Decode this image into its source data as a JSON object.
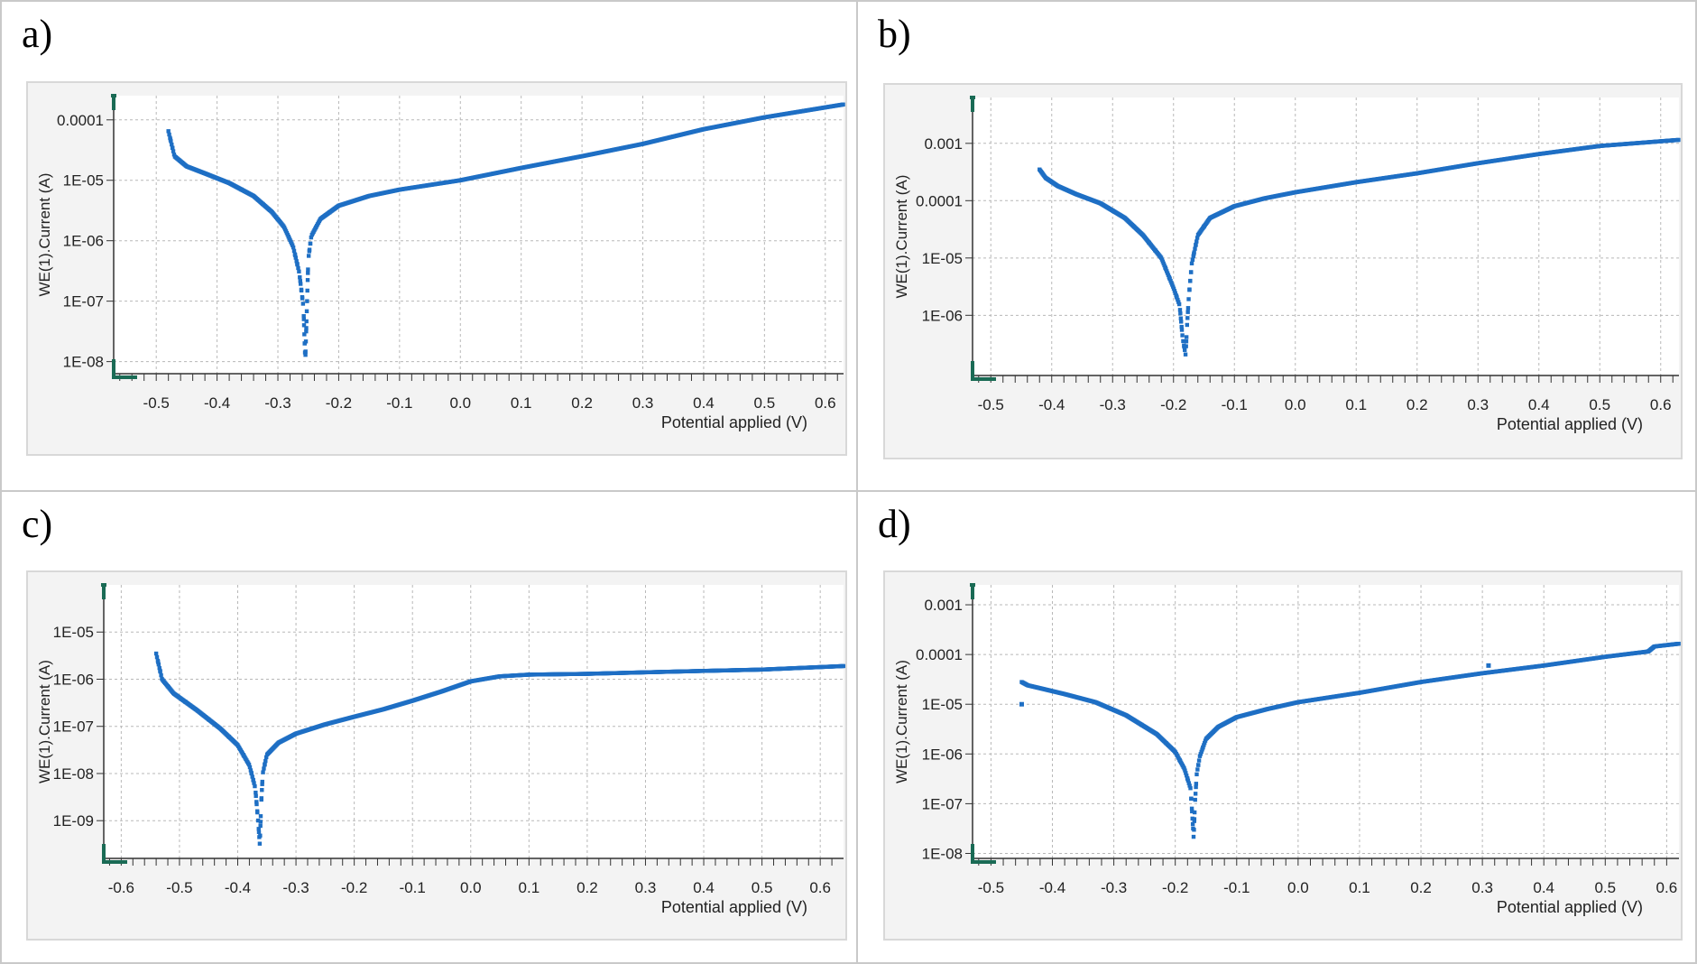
{
  "panels": [
    {
      "letter": "a)",
      "chart_data": {
        "type": "scatter",
        "xlabel": "Potential applied (V)",
        "ylabel": "WE(1).Current (A)",
        "xlim": [
          -0.57,
          0.63
        ],
        "ylim_log10": [
          -8.2,
          -3.6
        ],
        "yscale": "log",
        "grid": true,
        "x_ticks": [
          -0.5,
          -0.4,
          -0.3,
          -0.2,
          -0.1,
          0.0,
          0.1,
          0.2,
          0.3,
          0.4,
          0.5,
          0.6
        ],
        "x_tick_labels": [
          "-0.5",
          "-0.4",
          "-0.3",
          "-0.2",
          "-0.1",
          "0.0",
          "0.1",
          "0.2",
          "0.3",
          "0.4",
          "0.5",
          "0.6"
        ],
        "y_tick_exps": [
          -4,
          -5,
          -6,
          -7,
          -8
        ],
        "y_tick_labels": [
          "0.0001",
          "1E-05",
          "1E-06",
          "1E-07",
          "1E-08"
        ],
        "series": [
          {
            "x": [
              -0.48,
              -0.47,
              -0.45,
              -0.42,
              -0.38,
              -0.34,
              -0.31,
              -0.29,
              -0.275,
              -0.265,
              -0.258,
              -0.255,
              -0.252,
              -0.25,
              -0.245,
              -0.23,
              -0.2,
              -0.15,
              -0.1,
              0.0,
              0.1,
              0.2,
              0.3,
              0.4,
              0.5,
              0.63
            ],
            "y": [
              6.5e-05,
              2.5e-05,
              1.7e-05,
              1.3e-05,
              9e-06,
              5.5e-06,
              3e-06,
              1.7e-06,
              8e-07,
              3e-07,
              8e-08,
              1e-08,
              1e-07,
              5e-07,
              1.2e-06,
              2.3e-06,
              3.8e-06,
              5.5e-06,
              7e-06,
              1e-05,
              1.6e-05,
              2.5e-05,
              4e-05,
              7e-05,
              0.00011,
              0.00018
            ]
          }
        ]
      }
    },
    {
      "letter": "b)",
      "chart_data": {
        "type": "scatter",
        "xlabel": "Potential applied (V)",
        "ylabel": "WE(1).Current (A)",
        "xlim": [
          -0.53,
          0.63
        ],
        "ylim_log10": [
          -7.05,
          -2.2
        ],
        "yscale": "log",
        "grid": true,
        "x_ticks": [
          -0.5,
          -0.4,
          -0.3,
          -0.2,
          -0.1,
          0.0,
          0.1,
          0.2,
          0.3,
          0.4,
          0.5,
          0.6
        ],
        "x_tick_labels": [
          "-0.5",
          "-0.4",
          "-0.3",
          "-0.2",
          "-0.1",
          "0.0",
          "0.1",
          "0.2",
          "0.3",
          "0.4",
          "0.5",
          "0.6"
        ],
        "y_tick_exps": [
          -3,
          -4,
          -5,
          -6
        ],
        "y_tick_labels": [
          "0.001",
          "0.0001",
          "1E-05",
          "1E-06"
        ],
        "series": [
          {
            "x": [
              -0.42,
              -0.41,
              -0.39,
              -0.36,
              -0.32,
              -0.28,
              -0.25,
              -0.22,
              -0.2,
              -0.19,
              -0.185,
              -0.18,
              -0.178,
              -0.175,
              -0.17,
              -0.16,
              -0.14,
              -0.1,
              -0.05,
              0.0,
              0.1,
              0.2,
              0.3,
              0.4,
              0.5,
              0.63
            ],
            "y": [
              0.00035,
              0.00025,
              0.00018,
              0.00013,
              9e-05,
              5e-05,
              2.5e-05,
              1e-05,
              3e-06,
              1.5e-06,
              4e-07,
              2e-07,
              6e-07,
              2e-06,
              8e-06,
              2.5e-05,
              5e-05,
              8e-05,
              0.00011,
              0.00014,
              0.00021,
              0.0003,
              0.00045,
              0.00065,
              0.0009,
              0.00115
            ]
          }
        ]
      }
    },
    {
      "letter": "c)",
      "chart_data": {
        "type": "scatter",
        "xlabel": "Potential applied (V)",
        "ylabel": "WE(1).Current (A)",
        "xlim": [
          -0.63,
          0.64
        ],
        "ylim_log10": [
          -9.8,
          -4.0
        ],
        "yscale": "log",
        "grid": true,
        "x_ticks": [
          -0.6,
          -0.5,
          -0.4,
          -0.3,
          -0.2,
          -0.1,
          0.0,
          0.1,
          0.2,
          0.3,
          0.4,
          0.5,
          0.6
        ],
        "x_tick_labels": [
          "-0.6",
          "-0.5",
          "-0.4",
          "-0.3",
          "-0.2",
          "-0.1",
          "0.0",
          "0.1",
          "0.2",
          "0.3",
          "0.4",
          "0.5",
          "0.6"
        ],
        "y_tick_exps": [
          -5,
          -6,
          -7,
          -8,
          -9
        ],
        "y_tick_labels": [
          "1E-05",
          "1E-06",
          "1E-07",
          "1E-08",
          "1E-09"
        ],
        "series": [
          {
            "x": [
              -0.54,
              -0.53,
              -0.51,
              -0.47,
              -0.43,
              -0.4,
              -0.38,
              -0.37,
              -0.365,
              -0.362,
              -0.36,
              -0.357,
              -0.35,
              -0.33,
              -0.3,
              -0.25,
              -0.2,
              -0.15,
              -0.1,
              -0.05,
              0.0,
              0.05,
              0.1,
              0.2,
              0.3,
              0.4,
              0.5,
              0.64
            ],
            "y": [
              3.5e-06,
              1e-06,
              5e-07,
              2.2e-07,
              9e-08,
              4e-08,
              1.5e-08,
              5e-09,
              1e-09,
              3e-10,
              2e-09,
              1e-08,
              2.5e-08,
              4.5e-08,
              7e-08,
              1.1e-07,
              1.6e-07,
              2.3e-07,
              3.5e-07,
              5.5e-07,
              9e-07,
              1.15e-06,
              1.25e-06,
              1.3e-06,
              1.4e-06,
              1.5e-06,
              1.6e-06,
              1.9e-06
            ]
          }
        ]
      }
    },
    {
      "letter": "d)",
      "chart_data": {
        "type": "scatter",
        "xlabel": "Potential applied (V)",
        "ylabel": "WE(1).Current (A)",
        "xlim": [
          -0.53,
          0.62
        ],
        "ylim_log10": [
          -8.1,
          -2.6
        ],
        "yscale": "log",
        "grid": true,
        "x_ticks": [
          -0.5,
          -0.4,
          -0.3,
          -0.2,
          -0.1,
          0.0,
          0.1,
          0.2,
          0.3,
          0.4,
          0.5,
          0.6
        ],
        "x_tick_labels": [
          "-0.5",
          "-0.4",
          "-0.3",
          "-0.2",
          "-0.1",
          "0.0",
          "0.1",
          "0.2",
          "0.3",
          "0.4",
          "0.5",
          "0.6"
        ],
        "y_tick_exps": [
          -3,
          -4,
          -5,
          -6,
          -7,
          -8
        ],
        "y_tick_labels": [
          "0.001",
          "0.0001",
          "1E-05",
          "1E-06",
          "1E-07",
          "1E-08"
        ],
        "series": [
          {
            "x": [
              -0.45,
              -0.44,
              -0.42,
              -0.38,
              -0.33,
              -0.28,
              -0.23,
              -0.2,
              -0.185,
              -0.175,
              -0.17,
              -0.168,
              -0.165,
              -0.16,
              -0.15,
              -0.13,
              -0.1,
              -0.05,
              0.0,
              0.1,
              0.2,
              0.3,
              0.4,
              0.5,
              0.57,
              0.58,
              0.62
            ],
            "y": [
              2.8e-05,
              2.4e-05,
              2.1e-05,
              1.6e-05,
              1.1e-05,
              6e-06,
              2.5e-06,
              1.1e-06,
              5e-07,
              2e-07,
              2e-08,
              1e-07,
              4e-07,
              9e-07,
              2e-06,
              3.5e-06,
              5.5e-06,
              8e-06,
              1.1e-05,
              1.7e-05,
              2.8e-05,
              4.2e-05,
              6e-05,
              9e-05,
              0.000115,
              0.000145,
              0.000165
            ]
          },
          {
            "x": [
              -0.45,
              0.31
            ],
            "y": [
              1e-05,
              6e-05
            ]
          }
        ]
      }
    }
  ],
  "colors": {
    "series": "#1e6fc4",
    "axis_corner": "#1a6b55",
    "grid": "#b8b8b8",
    "cell_border": "#c9c9c9",
    "chart_frame": "#d8d8d8",
    "plot_bg": "#ffffff",
    "chart_bg": "#f3f3f3"
  }
}
